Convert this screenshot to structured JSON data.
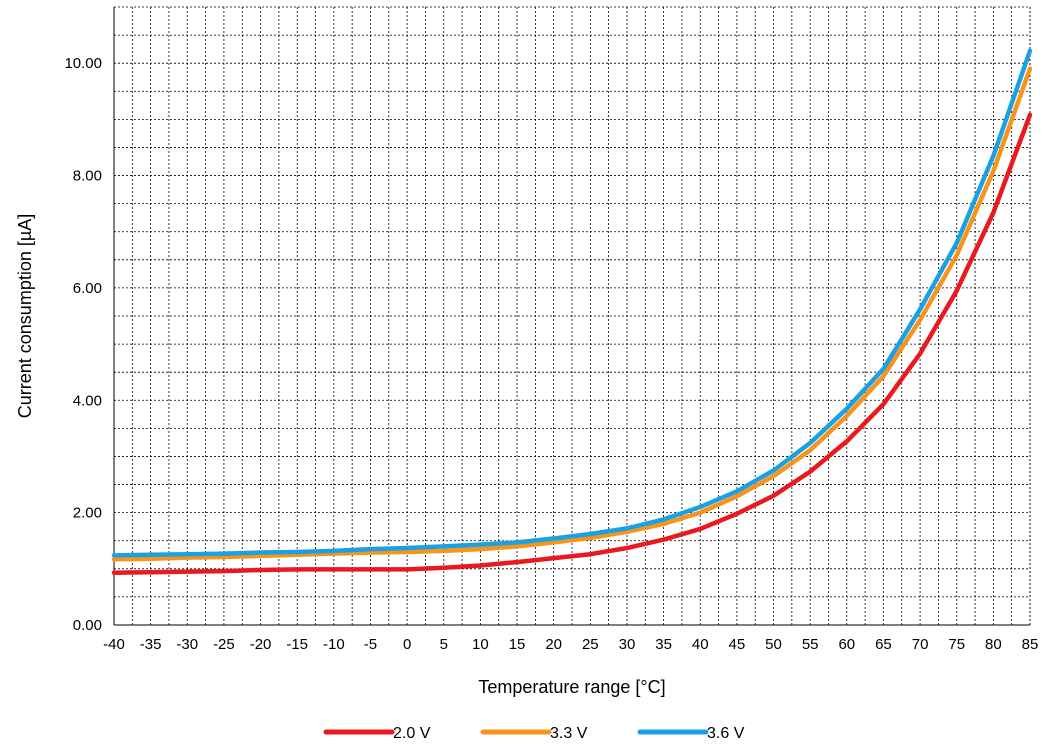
{
  "chart_data": {
    "type": "line",
    "title": "",
    "xlabel": "Temperature range [°C]",
    "ylabel": "Current consumption [µA]",
    "x": [
      -40,
      -35,
      -30,
      -25,
      -20,
      -15,
      -10,
      -5,
      0,
      5,
      10,
      15,
      20,
      25,
      30,
      35,
      40,
      45,
      50,
      55,
      60,
      65,
      70,
      75,
      80,
      85
    ],
    "xticks": [
      "-40",
      "-35",
      "-30",
      "-25",
      "-20",
      "-15",
      "-10",
      "-5",
      "0",
      "5",
      "10",
      "15",
      "20",
      "25",
      "30",
      "35",
      "40",
      "45",
      "50",
      "55",
      "60",
      "65",
      "70",
      "75",
      "80",
      "85"
    ],
    "xlim": [
      -40,
      85
    ],
    "ylim": [
      0,
      11
    ],
    "yticks": [
      "0.00",
      "2.00",
      "4.00",
      "6.00",
      "8.00",
      "10.00"
    ],
    "grid": true,
    "legend_position": "bottom",
    "series": [
      {
        "name": "2.0 V",
        "color": "#e8191f",
        "values": [
          0.93,
          0.94,
          0.95,
          0.96,
          0.98,
          0.99,
          0.99,
          0.99,
          0.99,
          1.02,
          1.06,
          1.12,
          1.19,
          1.26,
          1.37,
          1.52,
          1.71,
          1.98,
          2.3,
          2.73,
          3.27,
          3.93,
          4.83,
          5.95,
          7.34,
          9.08
        ]
      },
      {
        "name": "3.3 V",
        "color": "#f7941d",
        "values": [
          1.17,
          1.18,
          1.2,
          1.21,
          1.23,
          1.25,
          1.27,
          1.29,
          1.3,
          1.32,
          1.35,
          1.4,
          1.47,
          1.55,
          1.66,
          1.8,
          2.0,
          2.29,
          2.65,
          3.11,
          3.72,
          4.43,
          5.43,
          6.58,
          8.08,
          9.9
        ]
      },
      {
        "name": "3.6 V",
        "color": "#1ba1e2",
        "values": [
          1.24,
          1.25,
          1.26,
          1.27,
          1.29,
          1.3,
          1.32,
          1.35,
          1.37,
          1.4,
          1.43,
          1.47,
          1.54,
          1.62,
          1.72,
          1.88,
          2.1,
          2.38,
          2.75,
          3.24,
          3.85,
          4.56,
          5.62,
          6.8,
          8.35,
          10.22
        ]
      }
    ]
  }
}
